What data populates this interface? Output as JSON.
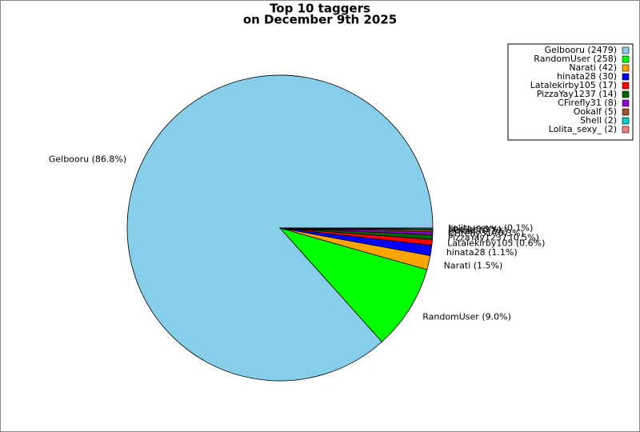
{
  "chart_data": {
    "type": "pie",
    "title": "Top 10 taggers",
    "subtitle": "on December 9th 2025",
    "categories": [
      "Gelbooru",
      "RandomUser",
      "Narati",
      "hinata28",
      "Latalekirby105",
      "PizzaYay1237",
      "CFirefly31",
      "Ookalf",
      "Shell",
      "Lolita_sexy_"
    ],
    "values": [
      86.8,
      9.0,
      1.5,
      1.1,
      0.6,
      0.5,
      0.3,
      0.2,
      0.1,
      0.1
    ],
    "value_labels": [
      "Gelbooru (86.8%)",
      "RandomUser (9.0%)",
      "Narati (1.5%)",
      "hinata28 (1.1%)",
      "Latalekirby105 (0.6%)",
      "PizzaYay1237 (0.5%)",
      "CFirefly31 (0.3%)",
      "Ookalf (0.2%)",
      "Shell (0.1%)",
      "Lolita_sexy_ (0.1%)"
    ],
    "legend_labels": [
      "Gelbooru (2479)",
      "RandomUser (258)",
      "Narati (42)",
      "hinata28 (30)",
      "Latalekirby105 (17)",
      "PizzaYay1237 (14)",
      "CFirefly31 (8)",
      "Ookalf (5)",
      "Shell (2)",
      "Lolita_sexy_ (2)"
    ],
    "colors": [
      "#87ceeb",
      "#00ff00",
      "#ffa500",
      "#0000ff",
      "#ff0000",
      "#006400",
      "#9400d3",
      "#a0522d",
      "#00ced1",
      "#f08080"
    ],
    "legend": "upper right"
  }
}
